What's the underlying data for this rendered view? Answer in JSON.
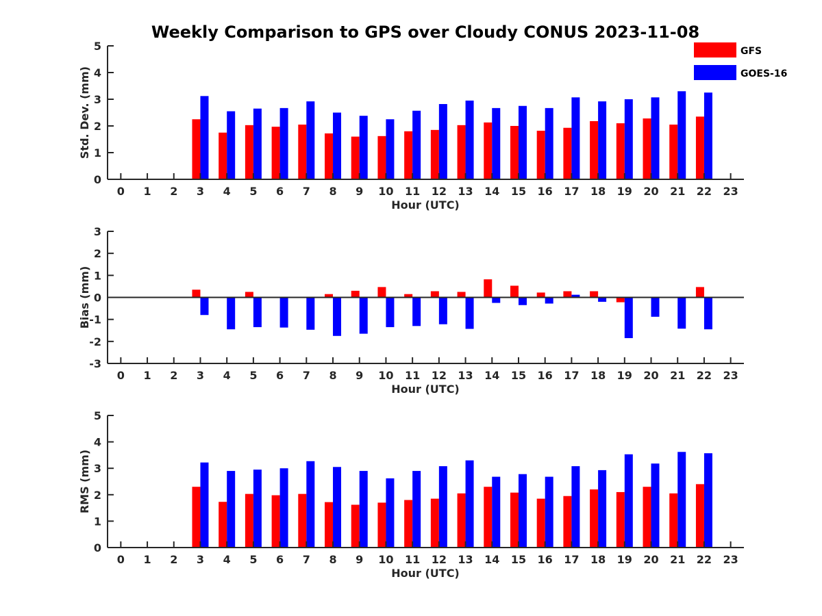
{
  "chart_data": {
    "type": "bar",
    "title": "Weekly Comparison to GPS over Cloudy CONUS 2023-11-08",
    "x": [
      0,
      1,
      2,
      3,
      4,
      5,
      6,
      7,
      8,
      9,
      10,
      11,
      12,
      13,
      14,
      15,
      16,
      17,
      18,
      19,
      20,
      21,
      22,
      23
    ],
    "legend": {
      "placement": "top-right",
      "entries": [
        "GFS",
        "GOES-16"
      ]
    },
    "colors": {
      "GFS": "#ff0000",
      "GOES-16": "#0000ff",
      "axis": "#262626"
    },
    "panels": [
      {
        "id": "stddev",
        "ylabel": "Std. Dev. (mm)",
        "xlabel": "Hour (UTC)",
        "ylim": [
          0,
          5
        ],
        "yticks": [
          0,
          1,
          2,
          3,
          4,
          5
        ],
        "series": [
          {
            "name": "GFS",
            "values": [
              null,
              null,
              null,
              2.25,
              1.75,
              2.03,
              1.97,
              2.05,
              1.72,
              1.6,
              1.62,
              1.8,
              1.85,
              2.03,
              2.13,
              2.0,
              1.82,
              1.93,
              2.18,
              2.1,
              2.28,
              2.05,
              2.35,
              null
            ]
          },
          {
            "name": "GOES-16",
            "values": [
              null,
              null,
              null,
              3.12,
              2.55,
              2.65,
              2.67,
              2.92,
              2.5,
              2.38,
              2.25,
              2.57,
              2.82,
              2.95,
              2.67,
              2.75,
              2.67,
              3.07,
              2.92,
              3.0,
              3.07,
              3.3,
              3.25,
              null
            ]
          }
        ]
      },
      {
        "id": "bias",
        "ylabel": "Bias (mm)",
        "xlabel": "Hour (UTC)",
        "ylim": [
          -3,
          3
        ],
        "yticks": [
          -3,
          -2,
          -1,
          0,
          1,
          2,
          3
        ],
        "zero_line": true,
        "series": [
          {
            "name": "GFS",
            "values": [
              null,
              null,
              null,
              0.35,
              0.0,
              0.25,
              0.0,
              -0.03,
              0.15,
              0.3,
              0.47,
              0.15,
              0.28,
              0.25,
              0.82,
              0.53,
              0.22,
              0.28,
              0.28,
              -0.22,
              0.0,
              0.02,
              0.47,
              null
            ]
          },
          {
            "name": "GOES-16",
            "values": [
              null,
              null,
              null,
              -0.8,
              -1.45,
              -1.35,
              -1.37,
              -1.47,
              -1.75,
              -1.65,
              -1.35,
              -1.3,
              -1.22,
              -1.43,
              -0.25,
              -0.35,
              -0.28,
              0.12,
              -0.2,
              -1.85,
              -0.88,
              -1.42,
              -1.45,
              null
            ]
          }
        ]
      },
      {
        "id": "rms",
        "ylabel": "RMS (mm)",
        "xlabel": "Hour (UTC)",
        "ylim": [
          0,
          5
        ],
        "yticks": [
          0,
          1,
          2,
          3,
          4,
          5
        ],
        "series": [
          {
            "name": "GFS",
            "values": [
              null,
              null,
              null,
              2.3,
              1.73,
              2.03,
              1.98,
              2.03,
              1.72,
              1.62,
              1.7,
              1.8,
              1.85,
              2.05,
              2.3,
              2.08,
              1.85,
              1.95,
              2.2,
              2.1,
              2.3,
              2.05,
              2.4,
              null
            ]
          },
          {
            "name": "GOES-16",
            "values": [
              null,
              null,
              null,
              3.22,
              2.9,
              2.95,
              3.0,
              3.27,
              3.05,
              2.9,
              2.62,
              2.9,
              3.08,
              3.3,
              2.68,
              2.78,
              2.68,
              3.08,
              2.93,
              3.53,
              3.18,
              3.62,
              3.57,
              null
            ]
          }
        ]
      }
    ]
  }
}
